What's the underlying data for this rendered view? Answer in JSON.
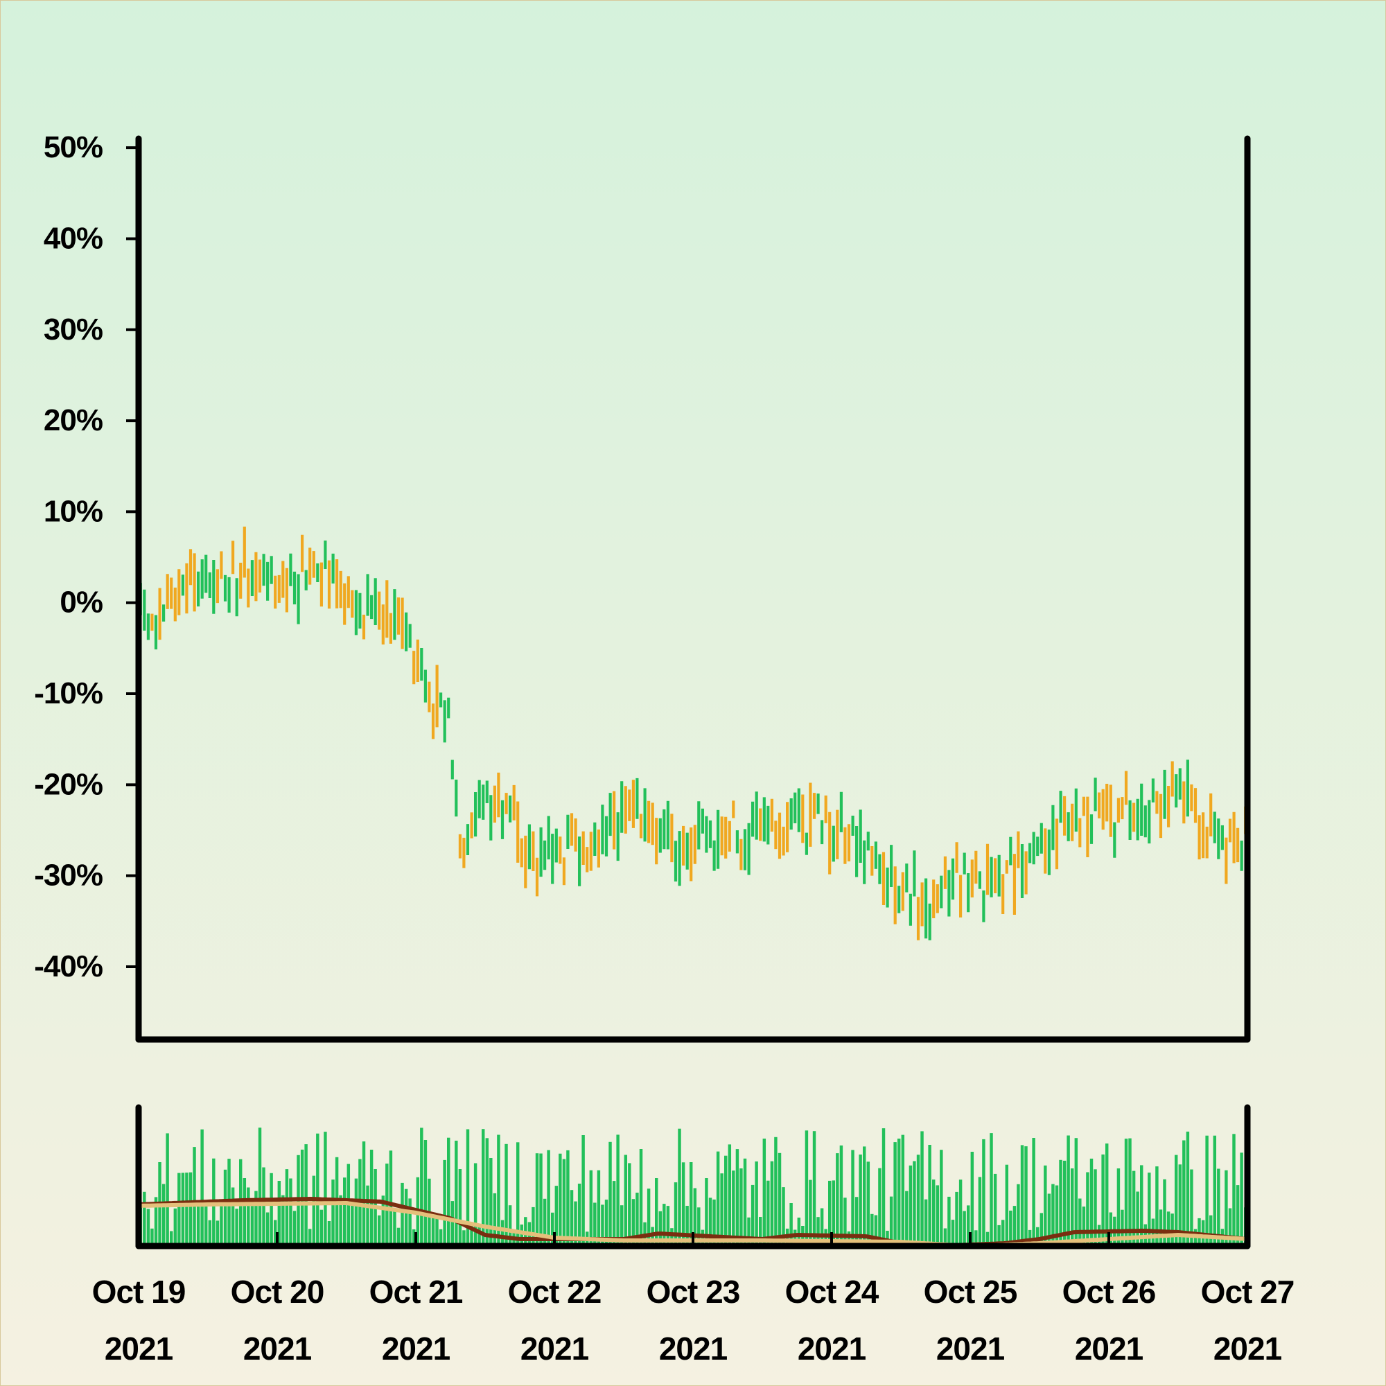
{
  "chart_data": {
    "type": "ohlc",
    "title": "",
    "xlabel": "",
    "ylabel": "",
    "y_unit": "%",
    "x_start": "2021-10-19",
    "x_end": "2021-10-27",
    "ylim": [
      -48,
      51
    ],
    "yticks": [
      50,
      40,
      30,
      20,
      10,
      0,
      -10,
      -20,
      -30,
      -40
    ],
    "ytick_labels": [
      "50%",
      "40%",
      "30%",
      "20%",
      "10%",
      "0%",
      "-10%",
      "-20%",
      "-30%",
      "-40%"
    ],
    "xticks": [
      {
        "date": "2021-10-19",
        "line1": "Oct 19",
        "line2": "2021"
      },
      {
        "date": "2021-10-20",
        "line1": "Oct 20",
        "line2": "2021"
      },
      {
        "date": "2021-10-21",
        "line1": "Oct 21",
        "line2": "2021"
      },
      {
        "date": "2021-10-22",
        "line1": "Oct 22",
        "line2": "2021"
      },
      {
        "date": "2021-10-23",
        "line1": "Oct 23",
        "line2": "2021"
      },
      {
        "date": "2021-10-24",
        "line1": "Oct 24",
        "line2": "2021"
      },
      {
        "date": "2021-10-25",
        "line1": "Oct 25",
        "line2": "2021"
      },
      {
        "date": "2021-10-26",
        "line1": "Oct 26",
        "line2": "2021"
      },
      {
        "date": "2021-10-27",
        "line1": "Oct 27",
        "line2": "2021"
      }
    ],
    "bars_per_day": 36,
    "ohlc_series": {
      "up_color": "#22c05a",
      "down_color": "#f0a820",
      "path": [
        [
          "2021-10-19 00:00",
          -1.0
        ],
        [
          "2021-10-19 03:00",
          -2.5
        ],
        [
          "2021-10-19 06:00",
          0.5
        ],
        [
          "2021-10-19 12:00",
          2.0
        ],
        [
          "2021-10-19 18:00",
          3.0
        ],
        [
          "2021-10-20 00:00",
          1.5
        ],
        [
          "2021-10-20 05:00",
          4.0
        ],
        [
          "2021-10-20 06:00",
          5.5
        ],
        [
          "2021-10-20 10:00",
          3.0
        ],
        [
          "2021-10-20 14:00",
          -1.5
        ],
        [
          "2021-10-20 18:00",
          0.0
        ],
        [
          "2021-10-20 22:00",
          -2.0
        ],
        [
          "2021-10-21 00:00",
          -6.0
        ],
        [
          "2021-10-21 03:00",
          -10.0
        ],
        [
          "2021-10-21 06:00",
          -13.0
        ],
        [
          "2021-10-21 08:00",
          -27.0
        ],
        [
          "2021-10-21 10:00",
          -24.0
        ],
        [
          "2021-10-21 14:00",
          -21.0
        ],
        [
          "2021-10-21 20:00",
          -28.0
        ],
        [
          "2021-10-22 00:00",
          -26.0
        ],
        [
          "2021-10-22 04:00",
          -28.0
        ],
        [
          "2021-10-22 10:00",
          -25.0
        ],
        [
          "2021-10-22 14:00",
          -23.0
        ],
        [
          "2021-10-22 20:00",
          -26.0
        ],
        [
          "2021-10-23 00:00",
          -27.0
        ],
        [
          "2021-10-23 06:00",
          -25.0
        ],
        [
          "2021-10-23 12:00",
          -26.5
        ],
        [
          "2021-10-23 18:00",
          -23.0
        ],
        [
          "2021-10-24 00:00",
          -25.0
        ],
        [
          "2021-10-24 06:00",
          -27.0
        ],
        [
          "2021-10-24 10:00",
          -30.0
        ],
        [
          "2021-10-24 14:00",
          -32.0
        ],
        [
          "2021-10-24 16:00",
          -35.0
        ],
        [
          "2021-10-24 20:00",
          -31.0
        ],
        [
          "2021-10-25 00:00",
          -30.0
        ],
        [
          "2021-10-25 04:00",
          -31.0
        ],
        [
          "2021-10-25 08:00",
          -30.0
        ],
        [
          "2021-10-25 12:00",
          -27.0
        ],
        [
          "2021-10-25 16:00",
          -24.0
        ],
        [
          "2021-10-25 20:00",
          -23.0
        ],
        [
          "2021-10-26 00:00",
          -23.5
        ],
        [
          "2021-10-26 04:00",
          -22.5
        ],
        [
          "2021-10-26 08:00",
          -22.0
        ],
        [
          "2021-10-26 12:00",
          -20.0
        ],
        [
          "2021-10-26 16:00",
          -24.0
        ],
        [
          "2021-10-26 20:00",
          -27.0
        ],
        [
          "2021-10-27 00:00",
          -26.0
        ]
      ]
    },
    "volume_panel": {
      "bar_color": "#22c05a",
      "ma_fast_color": "#7a2e10",
      "ma_slow_color": "#e5c07b",
      "ma_fast_path": [
        [
          "2021-10-19 00:00",
          0.3
        ],
        [
          "2021-10-19 18:00",
          0.33
        ],
        [
          "2021-10-20 06:00",
          0.34
        ],
        [
          "2021-10-20 18:00",
          0.32
        ],
        [
          "2021-10-21 06:00",
          0.2
        ],
        [
          "2021-10-21 12:00",
          0.08
        ],
        [
          "2021-10-21 18:00",
          0.05
        ],
        [
          "2021-10-22 12:00",
          0.05
        ],
        [
          "2021-10-22 18:00",
          0.09
        ],
        [
          "2021-10-23 12:00",
          0.05
        ],
        [
          "2021-10-23 18:00",
          0.08
        ],
        [
          "2021-10-24 06:00",
          0.07
        ],
        [
          "2021-10-24 12:00",
          0.02
        ],
        [
          "2021-10-24 18:00",
          0.0
        ],
        [
          "2021-10-25 06:00",
          0.02
        ],
        [
          "2021-10-25 12:00",
          0.05
        ],
        [
          "2021-10-25 18:00",
          0.1
        ],
        [
          "2021-10-26 06:00",
          0.11
        ],
        [
          "2021-10-26 12:00",
          0.1
        ],
        [
          "2021-10-27 00:00",
          0.05
        ]
      ],
      "ma_slow_path": [
        [
          "2021-10-19 00:00",
          0.29
        ],
        [
          "2021-10-19 12:00",
          0.3
        ],
        [
          "2021-10-20 12:00",
          0.31
        ],
        [
          "2021-10-21 00:00",
          0.24
        ],
        [
          "2021-10-21 12:00",
          0.14
        ],
        [
          "2021-10-22 00:00",
          0.06
        ],
        [
          "2021-10-22 12:00",
          0.04
        ],
        [
          "2021-10-23 12:00",
          0.04
        ],
        [
          "2021-10-24 12:00",
          0.03
        ],
        [
          "2021-10-25 00:00",
          0.0
        ],
        [
          "2021-10-25 12:00",
          0.02
        ],
        [
          "2021-10-26 00:00",
          0.05
        ],
        [
          "2021-10-26 12:00",
          0.08
        ],
        [
          "2021-10-27 00:00",
          0.05
        ]
      ]
    }
  },
  "style": {
    "bg_top": "#d5f2dc",
    "bg_bottom": "#f5f1e1",
    "axis_color": "#000000"
  }
}
